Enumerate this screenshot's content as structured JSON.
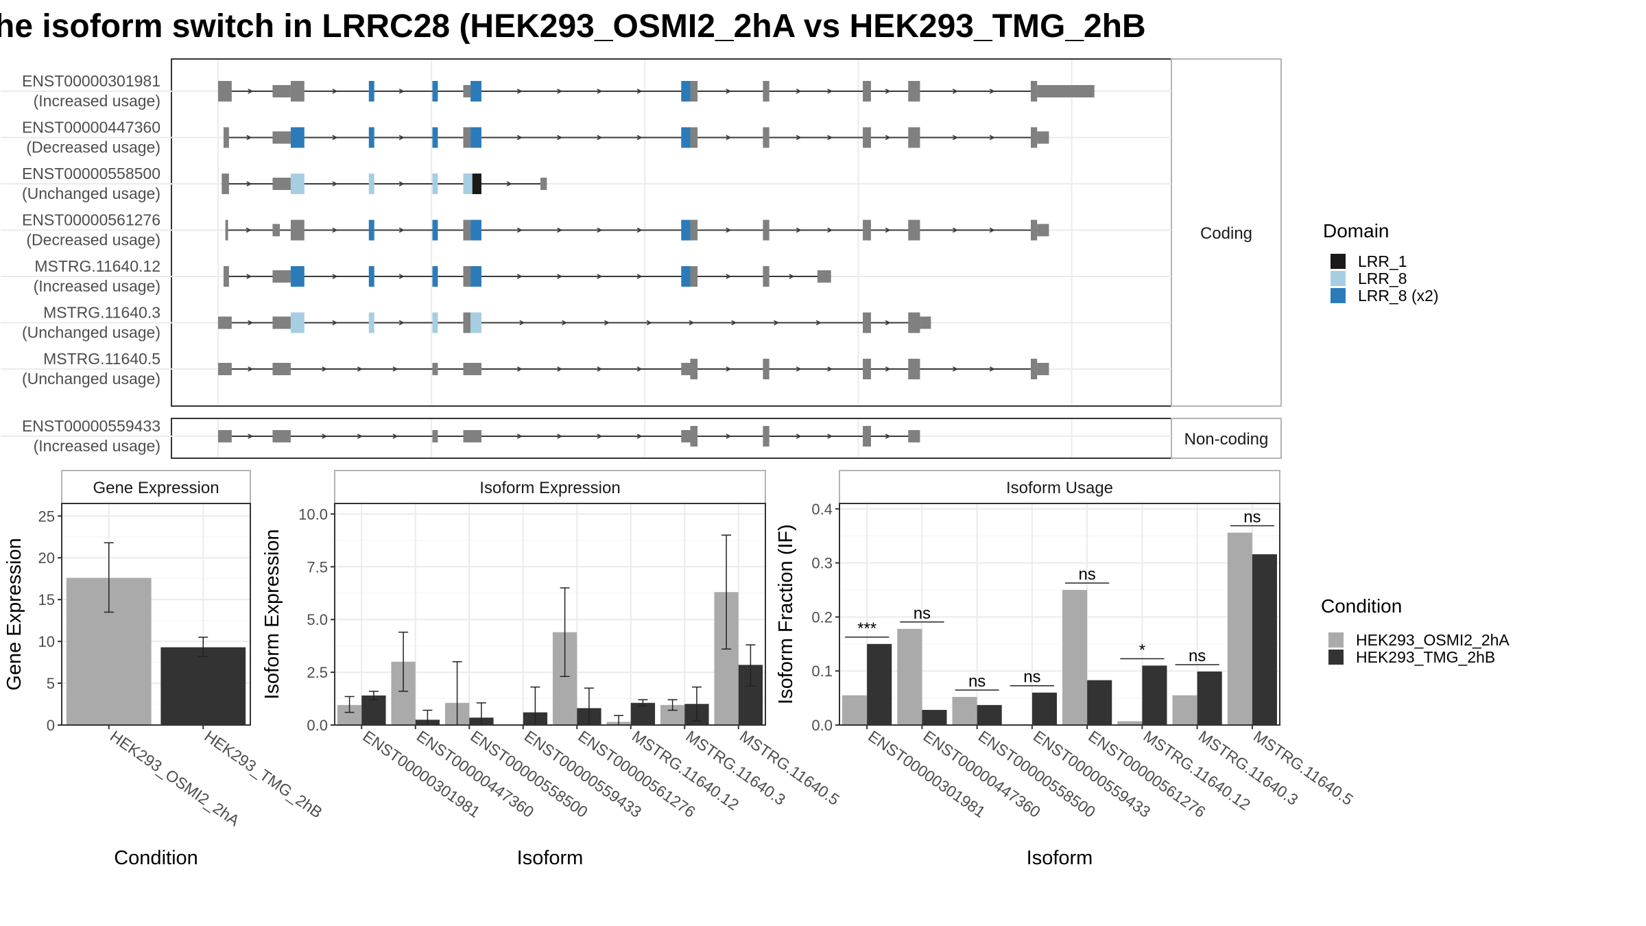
{
  "title": "he isoform switch in LRRC28 (HEK293_OSMI2_2hA vs HEK293_TMG_2hB",
  "colors": {
    "exon": "#808080",
    "intron": "#3a3a3a",
    "panel_border": "#333333",
    "strip_border": "#b3b3b3",
    "grid": "#ebebeb",
    "lrr_1": "#1a1a1a",
    "lrr_8": "#a6cee3",
    "lrr_8_x2": "#2b7bba",
    "cond_a": "#aaaaaa",
    "cond_b": "#333333"
  },
  "structure": {
    "coding_strip": "Coding",
    "noncoding_strip": "Non-coding",
    "exon_anchors": [
      {
        "kind": "u",
        "a": 0.0,
        "b": 0.015
      },
      {
        "kind": "c",
        "a": 0.08,
        "b": 0.095
      },
      {
        "kind": "d1",
        "a": 0.166,
        "b": 0.172
      },
      {
        "kind": "d2",
        "a": 0.236,
        "b": 0.242
      },
      {
        "kind": "d3",
        "a": 0.27,
        "b": 0.29
      },
      {
        "kind": "d4",
        "a": 0.51,
        "b": 0.53
      },
      {
        "kind": "c",
        "a": 0.6,
        "b": 0.607
      },
      {
        "kind": "c",
        "a": 0.71,
        "b": 0.719
      },
      {
        "kind": "c",
        "a": 0.76,
        "b": 0.773
      },
      {
        "kind": "c",
        "a": 0.895,
        "b": 0.902
      }
    ],
    "coding_isoforms": [
      {
        "id": "ENST00000301981",
        "status": "(Increased usage)",
        "exons": [
          [
            0.0,
            0.015
          ],
          [
            0.06,
            0.08,
            "u"
          ],
          [
            0.08,
            0.095
          ],
          [
            0.166,
            0.172,
            "x2"
          ],
          [
            0.236,
            0.242,
            "x2"
          ],
          [
            0.27,
            0.278,
            "u"
          ],
          [
            0.278,
            0.29,
            "x2"
          ],
          [
            0.51,
            0.52,
            "x2"
          ],
          [
            0.52,
            0.528
          ],
          [
            0.6,
            0.607
          ],
          [
            0.71,
            0.719
          ],
          [
            0.76,
            0.773
          ],
          [
            0.895,
            0.902
          ],
          [
            0.902,
            0.965,
            "u"
          ]
        ]
      },
      {
        "id": "ENST00000447360",
        "status": "(Decreased usage)",
        "exons": [
          [
            0.006,
            0.012
          ],
          [
            0.06,
            0.08,
            "u"
          ],
          [
            0.08,
            0.095,
            "x2"
          ],
          [
            0.166,
            0.172,
            "x2"
          ],
          [
            0.236,
            0.242,
            "x2"
          ],
          [
            0.27,
            0.278
          ],
          [
            0.278,
            0.29,
            "x2"
          ],
          [
            0.51,
            0.52,
            "x2"
          ],
          [
            0.52,
            0.528
          ],
          [
            0.6,
            0.607
          ],
          [
            0.71,
            0.719
          ],
          [
            0.76,
            0.773
          ],
          [
            0.895,
            0.902
          ],
          [
            0.902,
            0.915,
            "u"
          ]
        ]
      },
      {
        "id": "ENST00000558500",
        "status": "(Unchanged usage)",
        "exons": [
          [
            0.004,
            0.012
          ],
          [
            0.06,
            0.08,
            "u"
          ],
          [
            0.08,
            0.095,
            "l8"
          ],
          [
            0.166,
            0.172,
            "l8"
          ],
          [
            0.236,
            0.242,
            "l8"
          ],
          [
            0.27,
            0.28,
            "l8"
          ],
          [
            0.28,
            0.29,
            "l1"
          ],
          [
            0.355,
            0.362,
            "u"
          ]
        ]
      },
      {
        "id": "ENST00000561276",
        "status": "(Decreased usage)",
        "exons": [
          [
            0.008,
            0.011
          ],
          [
            0.06,
            0.068,
            "u"
          ],
          [
            0.08,
            0.095
          ],
          [
            0.166,
            0.172,
            "x2"
          ],
          [
            0.236,
            0.242,
            "x2"
          ],
          [
            0.27,
            0.278
          ],
          [
            0.278,
            0.29,
            "x2"
          ],
          [
            0.51,
            0.52,
            "x2"
          ],
          [
            0.52,
            0.528
          ],
          [
            0.6,
            0.607
          ],
          [
            0.71,
            0.719
          ],
          [
            0.76,
            0.773
          ],
          [
            0.895,
            0.902
          ],
          [
            0.902,
            0.915,
            "u"
          ]
        ]
      },
      {
        "id": "MSTRG.11640.12",
        "status": "(Increased usage)",
        "exons": [
          [
            0.006,
            0.012
          ],
          [
            0.06,
            0.08,
            "u"
          ],
          [
            0.08,
            0.095,
            "x2"
          ],
          [
            0.166,
            0.172,
            "x2"
          ],
          [
            0.236,
            0.242,
            "x2"
          ],
          [
            0.27,
            0.278
          ],
          [
            0.278,
            0.29,
            "x2"
          ],
          [
            0.51,
            0.52,
            "x2"
          ],
          [
            0.52,
            0.528
          ],
          [
            0.6,
            0.607
          ],
          [
            0.66,
            0.675,
            "u"
          ]
        ]
      },
      {
        "id": "MSTRG.11640.3",
        "status": "(Unchanged usage)",
        "exons": [
          [
            0.0,
            0.015,
            "u"
          ],
          [
            0.06,
            0.08,
            "u"
          ],
          [
            0.08,
            0.095,
            "l8"
          ],
          [
            0.166,
            0.172,
            "l8"
          ],
          [
            0.236,
            0.242,
            "l8"
          ],
          [
            0.27,
            0.278
          ],
          [
            0.278,
            0.29,
            "l8"
          ],
          [
            0.71,
            0.719
          ],
          [
            0.76,
            0.773
          ],
          [
            0.773,
            0.785,
            "u"
          ]
        ]
      },
      {
        "id": "MSTRG.11640.5",
        "status": "(Unchanged usage)",
        "exons": [
          [
            0.0,
            0.015,
            "u"
          ],
          [
            0.06,
            0.08,
            "u"
          ],
          [
            0.236,
            0.242,
            "u"
          ],
          [
            0.27,
            0.29,
            "u"
          ],
          [
            0.51,
            0.52,
            "u"
          ],
          [
            0.52,
            0.528
          ],
          [
            0.6,
            0.607
          ],
          [
            0.71,
            0.719
          ],
          [
            0.76,
            0.773
          ],
          [
            0.895,
            0.902
          ],
          [
            0.902,
            0.915,
            "u"
          ]
        ]
      }
    ],
    "noncoding_isoforms": [
      {
        "id": "ENST00000559433",
        "status": "(Increased usage)",
        "exons": [
          [
            0.0,
            0.015,
            "u"
          ],
          [
            0.06,
            0.08,
            "u"
          ],
          [
            0.236,
            0.242,
            "u"
          ],
          [
            0.27,
            0.29,
            "u"
          ],
          [
            0.51,
            0.52,
            "u"
          ],
          [
            0.52,
            0.528
          ],
          [
            0.6,
            0.607
          ],
          [
            0.71,
            0.719
          ],
          [
            0.76,
            0.773,
            "u"
          ]
        ]
      }
    ]
  },
  "legend_domain": {
    "title": "Domain",
    "items": [
      {
        "label": "LRR_1",
        "color": "#1a1a1a"
      },
      {
        "label": "LRR_8",
        "color": "#a6cee3"
      },
      {
        "label": "LRR_8 (x2)",
        "color": "#2b7bba"
      }
    ]
  },
  "legend_condition": {
    "title": "Condition",
    "items": [
      {
        "label": "HEK293_OSMI2_2hA",
        "color": "#aaaaaa"
      },
      {
        "label": "HEK293_TMG_2hB",
        "color": "#333333"
      }
    ]
  },
  "chart_data": [
    {
      "type": "bar",
      "title": "Gene Expression",
      "xlabel": "Condition",
      "ylabel": "Gene Expression",
      "ylim": [
        0,
        26.5
      ],
      "yticks": [
        0,
        5,
        10,
        15,
        20,
        25
      ],
      "categories": [
        "HEK293_OSMI2_2hA",
        "HEK293_TMG_2hB"
      ],
      "values": [
        17.6,
        9.3
      ],
      "err_low": [
        13.5,
        8.2
      ],
      "err_high": [
        21.8,
        10.5
      ]
    },
    {
      "type": "bar",
      "title": "Isoform Expression",
      "xlabel": "Isoform",
      "ylabel": "Isoform Expression",
      "ylim": [
        0,
        10.5
      ],
      "yticks": [
        0.0,
        2.5,
        5.0,
        7.5,
        10.0
      ],
      "ytick_labels": [
        "0.0",
        "2.5",
        "5.0",
        "7.5",
        "10.0"
      ],
      "categories": [
        "ENST00000301981",
        "ENST00000447360",
        "ENST00000558500",
        "ENST00000559433",
        "ENST00000561276",
        "MSTRG.11640.12",
        "MSTRG.11640.3",
        "MSTRG.11640.5"
      ],
      "series": [
        {
          "name": "HEK293_OSMI2_2hA",
          "values": [
            0.95,
            3.0,
            1.05,
            0.0,
            4.4,
            0.15,
            0.95,
            6.3
          ],
          "err_low": [
            0.6,
            1.6,
            0.0,
            0.0,
            2.3,
            0.0,
            0.7,
            3.6
          ],
          "err_high": [
            1.35,
            4.4,
            3.0,
            0.0,
            6.5,
            0.45,
            1.2,
            9.0
          ]
        },
        {
          "name": "HEK293_TMG_2hB",
          "values": [
            1.4,
            0.25,
            0.35,
            0.6,
            0.8,
            1.05,
            1.0,
            2.85
          ],
          "err_low": [
            1.2,
            0.0,
            0.0,
            0.0,
            0.0,
            0.9,
            0.2,
            1.85
          ],
          "err_high": [
            1.6,
            0.7,
            1.05,
            1.8,
            1.75,
            1.2,
            1.8,
            3.8
          ]
        }
      ]
    },
    {
      "type": "bar",
      "title": "Isoform Usage",
      "xlabel": "Isoform",
      "ylabel": "Isoform Fraction (IF)",
      "ylim": [
        0,
        0.41
      ],
      "yticks": [
        0.0,
        0.1,
        0.2,
        0.3,
        0.4
      ],
      "ytick_labels": [
        "0.0",
        "0.1",
        "0.2",
        "0.3",
        "0.4"
      ],
      "categories": [
        "ENST00000301981",
        "ENST00000447360",
        "ENST00000558500",
        "ENST00000559433",
        "ENST00000561276",
        "MSTRG.11640.12",
        "MSTRG.11640.3",
        "MSTRG.11640.5"
      ],
      "series": [
        {
          "name": "HEK293_OSMI2_2hA",
          "values": [
            0.055,
            0.178,
            0.052,
            0.0,
            0.25,
            0.007,
            0.055,
            0.356
          ]
        },
        {
          "name": "HEK293_TMG_2hB",
          "values": [
            0.15,
            0.028,
            0.037,
            0.06,
            0.083,
            0.11,
            0.099,
            0.316
          ]
        }
      ],
      "significance": [
        "***",
        "ns",
        "ns",
        "ns",
        "ns",
        "*",
        "ns",
        "ns"
      ]
    }
  ]
}
